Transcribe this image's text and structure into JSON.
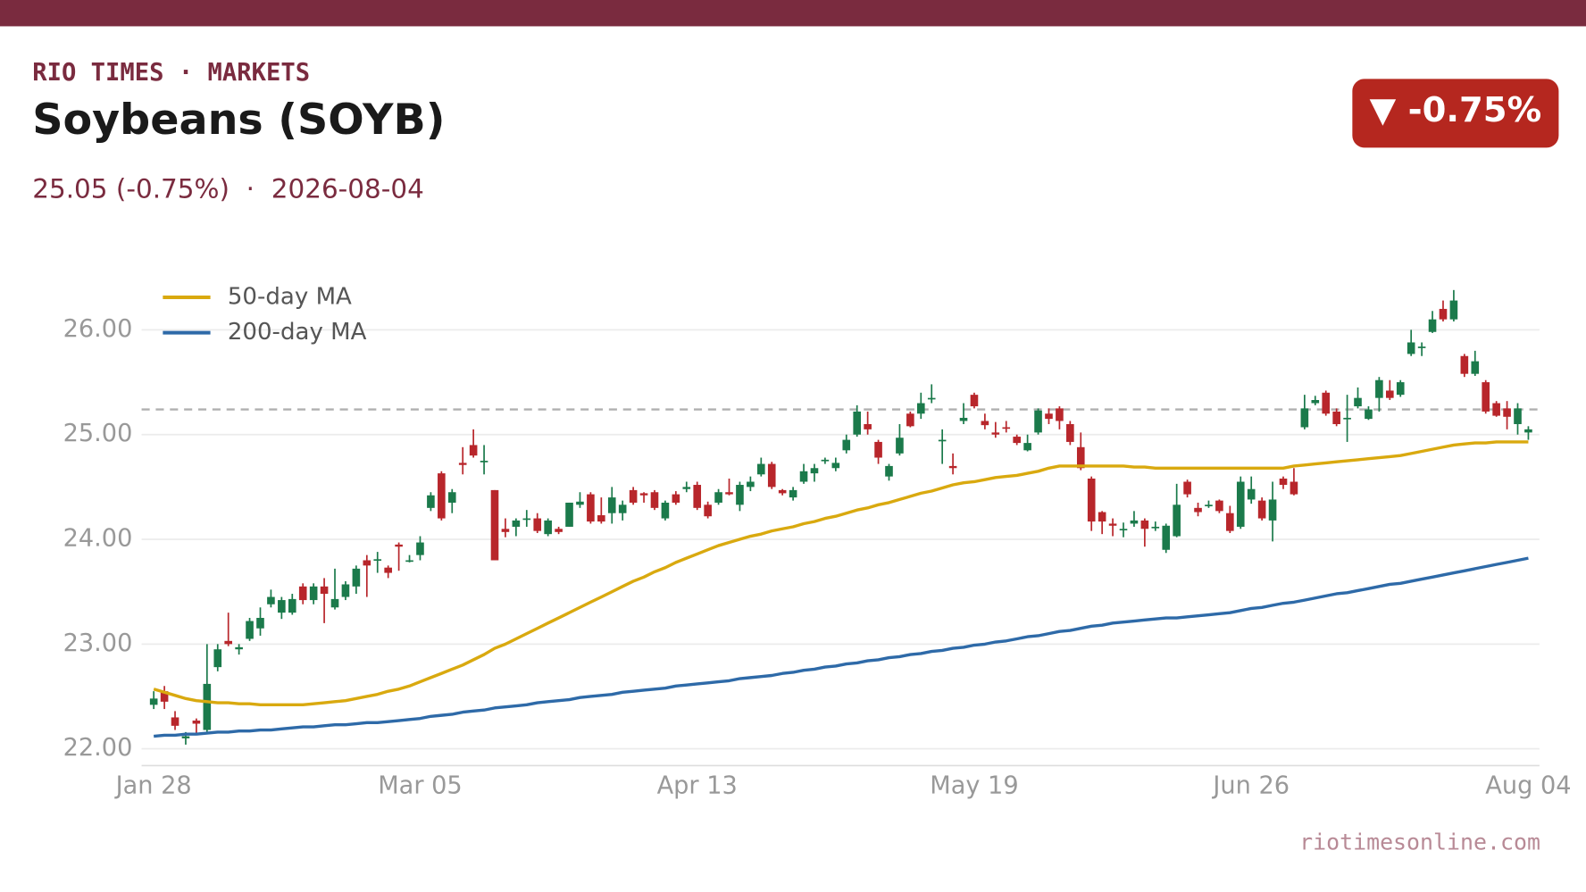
{
  "header": {
    "brand": "RIO TIMES · MARKETS",
    "title": "Soybeans (SOYB)",
    "subtitle": "25.05 (-0.75%)  ·  2026-08-04",
    "badge": "▼ -0.75%"
  },
  "footer": {
    "source": "riotimesonline.com"
  },
  "chart_data": {
    "type": "candlestick",
    "categories": [
      "Jan 28",
      null,
      null,
      null,
      null,
      null,
      null,
      null,
      null,
      null,
      null,
      null,
      null,
      null,
      null,
      null,
      null,
      null,
      null,
      null,
      null,
      null,
      null,
      null,
      null,
      "Mar 05",
      null,
      null,
      null,
      null,
      null,
      null,
      null,
      null,
      null,
      null,
      null,
      null,
      null,
      null,
      null,
      null,
      null,
      null,
      null,
      null,
      null,
      null,
      null,
      null,
      null,
      "Apr 13",
      null,
      null,
      null,
      null,
      null,
      null,
      null,
      null,
      null,
      null,
      null,
      null,
      null,
      null,
      null,
      null,
      null,
      null,
      null,
      null,
      null,
      null,
      null,
      null,
      null,
      "May 19",
      null,
      null,
      null,
      null,
      null,
      null,
      null,
      null,
      null,
      null,
      null,
      null,
      null,
      null,
      null,
      null,
      null,
      null,
      null,
      null,
      null,
      null,
      null,
      null,
      null,
      "Jun 26",
      null,
      null,
      null,
      null,
      null,
      null,
      null,
      null,
      null,
      null,
      null,
      null,
      null,
      null,
      null,
      null,
      null,
      null,
      null,
      null,
      null,
      null,
      null,
      null,
      null,
      "Aug 04"
    ],
    "ohlc": [
      [
        22.42,
        22.55,
        22.38,
        22.48
      ],
      [
        22.55,
        22.6,
        22.38,
        22.45
      ],
      [
        22.3,
        22.36,
        22.18,
        22.22
      ],
      [
        22.1,
        22.16,
        22.04,
        22.12
      ],
      [
        22.27,
        22.29,
        22.14,
        22.24
      ],
      [
        22.18,
        23.0,
        22.16,
        22.62
      ],
      [
        22.78,
        23.0,
        22.74,
        22.95
      ],
      [
        23.03,
        23.3,
        22.98,
        23.0
      ],
      [
        22.95,
        23.0,
        22.9,
        22.97
      ],
      [
        23.05,
        23.25,
        23.03,
        23.22
      ],
      [
        23.15,
        23.35,
        23.08,
        23.25
      ],
      [
        23.38,
        23.52,
        23.35,
        23.45
      ],
      [
        23.3,
        23.45,
        23.24,
        23.42
      ],
      [
        23.3,
        23.48,
        23.28,
        23.43
      ],
      [
        23.55,
        23.58,
        23.38,
        23.42
      ],
      [
        23.42,
        23.58,
        23.38,
        23.55
      ],
      [
        23.55,
        23.63,
        23.2,
        23.48
      ],
      [
        23.35,
        23.72,
        23.33,
        23.43
      ],
      [
        23.45,
        23.6,
        23.42,
        23.57
      ],
      [
        23.55,
        23.75,
        23.48,
        23.72
      ],
      [
        23.8,
        23.85,
        23.45,
        23.75
      ],
      [
        23.8,
        23.88,
        23.68,
        23.81
      ],
      [
        23.73,
        23.75,
        23.63,
        23.68
      ],
      [
        23.95,
        23.97,
        23.7,
        23.93
      ],
      [
        23.8,
        23.85,
        23.78,
        23.8
      ],
      [
        23.85,
        24.03,
        23.8,
        23.97
      ],
      [
        24.3,
        24.45,
        24.27,
        24.42
      ],
      [
        24.63,
        24.65,
        24.18,
        24.2
      ],
      [
        24.35,
        24.48,
        24.25,
        24.45
      ],
      [
        24.73,
        24.88,
        24.62,
        24.71
      ],
      [
        24.9,
        25.05,
        24.78,
        24.8
      ],
      [
        24.75,
        24.9,
        24.62,
        24.75
      ],
      [
        24.47,
        24.47,
        23.8,
        23.8
      ],
      [
        24.1,
        24.2,
        24.02,
        24.07
      ],
      [
        24.12,
        24.2,
        24.03,
        24.18
      ],
      [
        24.2,
        24.28,
        24.12,
        24.2
      ],
      [
        24.2,
        24.25,
        24.06,
        24.08
      ],
      [
        24.05,
        24.2,
        24.03,
        24.18
      ],
      [
        24.1,
        24.12,
        24.05,
        24.07
      ],
      [
        24.12,
        24.35,
        24.12,
        24.35
      ],
      [
        24.33,
        24.45,
        24.3,
        24.36
      ],
      [
        24.43,
        24.45,
        24.15,
        24.17
      ],
      [
        24.23,
        24.4,
        24.15,
        24.17
      ],
      [
        24.25,
        24.5,
        24.15,
        24.4
      ],
      [
        24.25,
        24.37,
        24.18,
        24.33
      ],
      [
        24.47,
        24.5,
        24.33,
        24.35
      ],
      [
        24.44,
        24.45,
        24.35,
        24.42
      ],
      [
        24.45,
        24.47,
        24.28,
        24.3
      ],
      [
        24.2,
        24.37,
        24.18,
        24.35
      ],
      [
        24.43,
        24.46,
        24.33,
        24.35
      ],
      [
        24.48,
        24.55,
        24.45,
        24.5
      ],
      [
        24.52,
        24.55,
        24.28,
        24.3
      ],
      [
        24.33,
        24.36,
        24.2,
        24.22
      ],
      [
        24.35,
        24.48,
        24.33,
        24.45
      ],
      [
        24.45,
        24.58,
        24.42,
        24.43
      ],
      [
        24.33,
        24.55,
        24.27,
        24.52
      ],
      [
        24.5,
        24.6,
        24.46,
        24.55
      ],
      [
        24.62,
        24.78,
        24.6,
        24.72
      ],
      [
        24.72,
        24.74,
        24.48,
        24.5
      ],
      [
        24.47,
        24.48,
        24.42,
        24.44
      ],
      [
        24.4,
        24.5,
        24.37,
        24.47
      ],
      [
        24.55,
        24.72,
        24.53,
        24.65
      ],
      [
        24.63,
        24.72,
        24.55,
        24.68
      ],
      [
        24.75,
        24.78,
        24.72,
        24.76
      ],
      [
        24.68,
        24.78,
        24.65,
        24.73
      ],
      [
        24.85,
        25.0,
        24.82,
        24.95
      ],
      [
        25.0,
        25.28,
        24.98,
        25.22
      ],
      [
        25.1,
        25.22,
        25.0,
        25.05
      ],
      [
        24.93,
        24.95,
        24.72,
        24.78
      ],
      [
        24.6,
        24.72,
        24.56,
        24.7
      ],
      [
        24.82,
        25.1,
        24.8,
        24.97
      ],
      [
        25.2,
        25.22,
        25.07,
        25.08
      ],
      [
        25.2,
        25.4,
        25.15,
        25.3
      ],
      [
        25.35,
        25.48,
        25.3,
        25.35
      ],
      [
        24.95,
        25.05,
        24.72,
        24.95
      ],
      [
        24.7,
        24.82,
        24.62,
        24.68
      ],
      [
        25.13,
        25.3,
        25.1,
        25.16
      ],
      [
        25.38,
        25.4,
        25.25,
        25.27
      ],
      [
        25.13,
        25.2,
        25.05,
        25.09
      ],
      [
        25.02,
        25.12,
        24.97,
        25.0
      ],
      [
        25.07,
        25.13,
        25.02,
        25.06
      ],
      [
        24.98,
        25.0,
        24.9,
        24.92
      ],
      [
        24.85,
        25.0,
        24.84,
        24.92
      ],
      [
        25.02,
        25.25,
        25.0,
        25.23
      ],
      [
        25.2,
        25.25,
        25.1,
        25.15
      ],
      [
        25.25,
        25.27,
        25.05,
        25.13
      ],
      [
        25.1,
        25.13,
        24.9,
        24.93
      ],
      [
        24.88,
        25.02,
        24.66,
        24.68
      ],
      [
        24.58,
        24.6,
        24.08,
        24.17
      ],
      [
        24.26,
        24.27,
        24.05,
        24.17
      ],
      [
        24.15,
        24.2,
        24.03,
        24.13
      ],
      [
        24.1,
        24.16,
        24.02,
        24.1
      ],
      [
        24.15,
        24.27,
        24.12,
        24.18
      ],
      [
        24.18,
        24.2,
        23.93,
        24.1
      ],
      [
        24.12,
        24.17,
        24.08,
        24.12
      ],
      [
        23.9,
        24.15,
        23.87,
        24.13
      ],
      [
        24.03,
        24.53,
        24.02,
        24.33
      ],
      [
        24.55,
        24.57,
        24.4,
        24.43
      ],
      [
        24.3,
        24.35,
        24.22,
        24.26
      ],
      [
        24.32,
        24.37,
        24.3,
        24.33
      ],
      [
        24.37,
        24.38,
        24.25,
        24.27
      ],
      [
        24.25,
        24.32,
        24.06,
        24.08
      ],
      [
        24.12,
        24.6,
        24.1,
        24.55
      ],
      [
        24.38,
        24.6,
        24.34,
        24.48
      ],
      [
        24.37,
        24.4,
        24.18,
        24.2
      ],
      [
        24.18,
        24.55,
        23.98,
        24.38
      ],
      [
        24.58,
        24.6,
        24.48,
        24.52
      ],
      [
        24.55,
        24.68,
        24.42,
        24.43
      ],
      [
        25.07,
        25.38,
        25.05,
        25.25
      ],
      [
        25.3,
        25.37,
        25.28,
        25.33
      ],
      [
        25.4,
        25.42,
        25.18,
        25.2
      ],
      [
        25.22,
        25.25,
        25.08,
        25.1
      ],
      [
        25.15,
        25.38,
        24.93,
        25.16
      ],
      [
        25.27,
        25.45,
        25.25,
        25.35
      ],
      [
        25.15,
        25.27,
        25.14,
        25.24
      ],
      [
        25.35,
        25.55,
        25.22,
        25.52
      ],
      [
        25.42,
        25.52,
        25.33,
        25.35
      ],
      [
        25.38,
        25.52,
        25.36,
        25.5
      ],
      [
        25.77,
        26.0,
        25.75,
        25.88
      ],
      [
        25.84,
        25.88,
        25.75,
        25.84
      ],
      [
        25.98,
        26.18,
        25.97,
        26.1
      ],
      [
        26.2,
        26.28,
        26.08,
        26.1
      ],
      [
        26.1,
        26.38,
        26.08,
        26.28
      ],
      [
        25.75,
        25.77,
        25.55,
        25.58
      ],
      [
        25.58,
        25.8,
        25.56,
        25.7
      ],
      [
        25.5,
        25.52,
        25.2,
        25.22
      ],
      [
        25.3,
        25.32,
        25.17,
        25.18
      ],
      [
        25.25,
        25.32,
        25.05,
        25.17
      ],
      [
        25.1,
        25.3,
        25.0,
        25.25
      ],
      [
        25.02,
        25.08,
        24.95,
        25.05
      ]
    ],
    "up_color": "#1b7a4b",
    "down_color": "#b8262b",
    "series": [
      {
        "name": "50-day MA",
        "color": "#d9a90f",
        "values": [
          22.57,
          22.54,
          22.51,
          22.48,
          22.46,
          22.45,
          22.44,
          22.44,
          22.43,
          22.43,
          22.42,
          22.42,
          22.42,
          22.42,
          22.42,
          22.43,
          22.44,
          22.45,
          22.46,
          22.48,
          22.5,
          22.52,
          22.55,
          22.57,
          22.6,
          22.64,
          22.68,
          22.72,
          22.76,
          22.8,
          22.85,
          22.9,
          22.96,
          23.0,
          23.05,
          23.1,
          23.15,
          23.2,
          23.25,
          23.3,
          23.35,
          23.4,
          23.45,
          23.5,
          23.55,
          23.6,
          23.64,
          23.69,
          23.73,
          23.78,
          23.82,
          23.86,
          23.9,
          23.94,
          23.97,
          24.0,
          24.03,
          24.05,
          24.08,
          24.1,
          24.12,
          24.15,
          24.17,
          24.2,
          24.22,
          24.25,
          24.28,
          24.3,
          24.33,
          24.35,
          24.38,
          24.41,
          24.44,
          24.46,
          24.49,
          24.52,
          24.54,
          24.55,
          24.57,
          24.59,
          24.6,
          24.61,
          24.63,
          24.65,
          24.68,
          24.7,
          24.7,
          24.7,
          24.7,
          24.7,
          24.7,
          24.7,
          24.69,
          24.69,
          24.68,
          24.68,
          24.68,
          24.68,
          24.68,
          24.68,
          24.68,
          24.68,
          24.68,
          24.68,
          24.68,
          24.68,
          24.68,
          24.7,
          24.71,
          24.72,
          24.73,
          24.74,
          24.75,
          24.76,
          24.77,
          24.78,
          24.79,
          24.8,
          24.82,
          24.84,
          24.86,
          24.88,
          24.9,
          24.91,
          24.92,
          24.92,
          24.93,
          24.93,
          24.93,
          24.93
        ]
      },
      {
        "name": "200-day MA",
        "color": "#2e6aa8",
        "values": [
          22.12,
          22.13,
          22.13,
          22.14,
          22.14,
          22.15,
          22.16,
          22.16,
          22.17,
          22.17,
          22.18,
          22.18,
          22.19,
          22.2,
          22.21,
          22.21,
          22.22,
          22.23,
          22.23,
          22.24,
          22.25,
          22.25,
          22.26,
          22.27,
          22.28,
          22.29,
          22.31,
          22.32,
          22.33,
          22.35,
          22.36,
          22.37,
          22.39,
          22.4,
          22.41,
          22.42,
          22.44,
          22.45,
          22.46,
          22.47,
          22.49,
          22.5,
          22.51,
          22.52,
          22.54,
          22.55,
          22.56,
          22.57,
          22.58,
          22.6,
          22.61,
          22.62,
          22.63,
          22.64,
          22.65,
          22.67,
          22.68,
          22.69,
          22.7,
          22.72,
          22.73,
          22.75,
          22.76,
          22.78,
          22.79,
          22.81,
          22.82,
          22.84,
          22.85,
          22.87,
          22.88,
          22.9,
          22.91,
          22.93,
          22.94,
          22.96,
          22.97,
          22.99,
          23.0,
          23.02,
          23.03,
          23.05,
          23.07,
          23.08,
          23.1,
          23.12,
          23.13,
          23.15,
          23.17,
          23.18,
          23.2,
          23.21,
          23.22,
          23.23,
          23.24,
          23.25,
          23.25,
          23.26,
          23.27,
          23.28,
          23.29,
          23.3,
          23.32,
          23.34,
          23.35,
          23.37,
          23.39,
          23.4,
          23.42,
          23.44,
          23.46,
          23.48,
          23.49,
          23.51,
          23.53,
          23.55,
          23.57,
          23.58,
          23.6,
          23.62,
          23.64,
          23.66,
          23.68,
          23.7,
          23.72,
          23.74,
          23.76,
          23.78,
          23.8,
          23.82
        ]
      }
    ],
    "reference_value": 25.24,
    "ylim": [
      21.84,
      26.6
    ],
    "yticks": [
      {
        "value": 22,
        "label": "22.00"
      },
      {
        "value": 23,
        "label": "23.00"
      },
      {
        "value": 24,
        "label": "24.00"
      },
      {
        "value": 25,
        "label": "25.00"
      },
      {
        "value": 26,
        "label": "26.00"
      }
    ],
    "grid": true,
    "legend": "upper left"
  }
}
